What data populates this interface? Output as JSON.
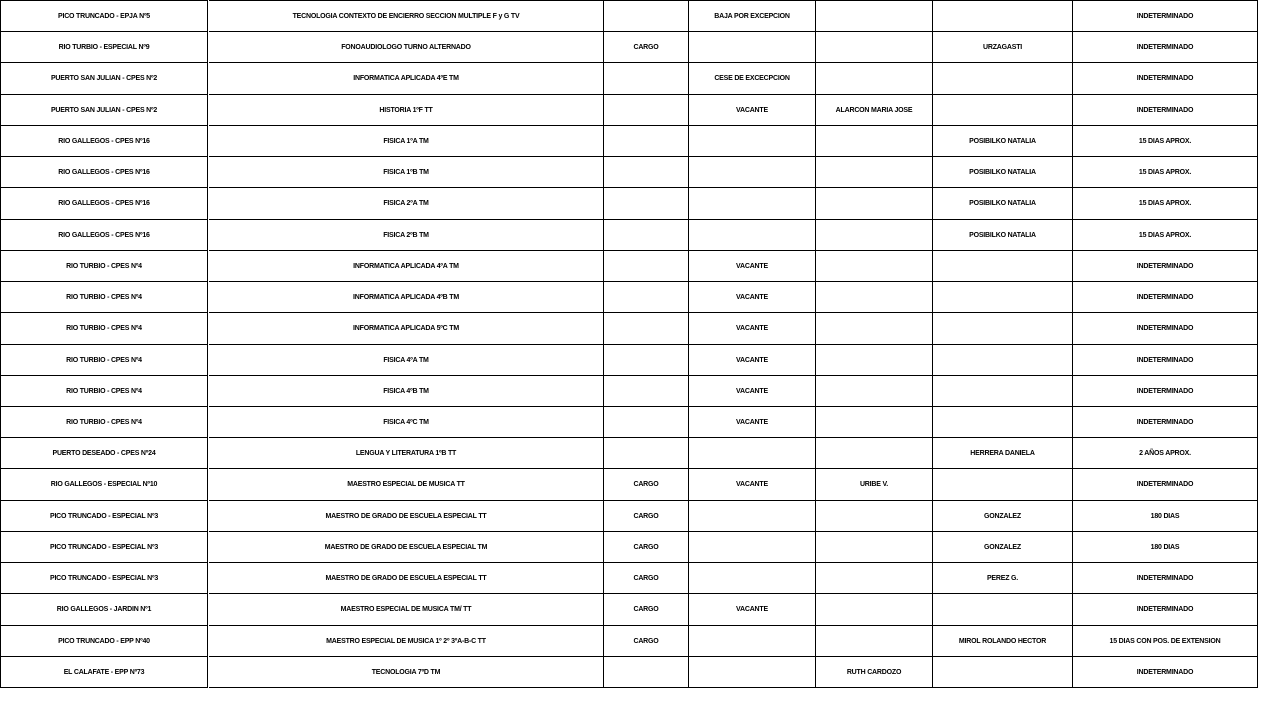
{
  "table": {
    "rows": [
      [
        "PICO TRUNCADO - EPJA Nº5",
        "TECNOLOGIA CONTEXTO DE ENCIERRO SECCION MULTIPLE F y G TV",
        null,
        "BAJA POR EXCEPCION",
        null,
        null,
        "INDETERMINADO"
      ],
      [
        "RIO TURBIO - ESPECIAL Nº9",
        "FONOAUDIOLOGO TURNO ALTERNADO",
        "CARGO",
        null,
        null,
        "URZAGASTI",
        "INDETERMINADO"
      ],
      [
        "PUERTO SAN JULIAN - CPES Nº2",
        "INFORMATICA APLICADA 4ºE TM",
        null,
        "CESE DE EXCECPCION",
        null,
        null,
        "INDETERMINADO"
      ],
      [
        "PUERTO SAN JULIAN - CPES Nº2",
        "HISTORIA 1ºF TT",
        null,
        "VACANTE",
        "ALARCON MARIA JOSE",
        null,
        "INDETERMINADO"
      ],
      [
        "RIO GALLEGOS - CPES Nº16",
        "FISICA 1ºA TM",
        null,
        null,
        null,
        "POSIBILKO NATALIA",
        "15 DIAS APROX."
      ],
      [
        "RIO GALLEGOS - CPES Nº16",
        "FISICA 1ºB TM",
        null,
        null,
        null,
        "POSIBILKO NATALIA",
        "15 DIAS APROX."
      ],
      [
        "RIO GALLEGOS - CPES Nº16",
        "FISICA 2ºA TM",
        null,
        null,
        null,
        "POSIBILKO NATALIA",
        "15 DIAS APROX."
      ],
      [
        "RIO GALLEGOS - CPES Nº16",
        "FISICA 2ºB TM",
        null,
        null,
        null,
        "POSIBILKO NATALIA",
        "15 DIAS APROX."
      ],
      [
        "RIO TURBIO - CPES Nº4",
        "INFORMATICA APLICADA 4ºA TM",
        null,
        "VACANTE",
        null,
        null,
        "INDETERMINADO"
      ],
      [
        "RIO TURBIO - CPES Nº4",
        "INFORMATICA APLICADA 4ºB TM",
        null,
        "VACANTE",
        null,
        null,
        "INDETERMINADO"
      ],
      [
        "RIO TURBIO - CPES Nº4",
        "INFORMATICA APLICADA 5ºC TM",
        null,
        "VACANTE",
        null,
        null,
        "INDETERMINADO"
      ],
      [
        "RIO TURBIO - CPES Nº4",
        "FISICA 4ºA TM",
        null,
        "VACANTE",
        null,
        null,
        "INDETERMINADO"
      ],
      [
        "RIO TURBIO - CPES Nº4",
        "FISICA 4ºB TM",
        null,
        "VACANTE",
        null,
        null,
        "INDETERMINADO"
      ],
      [
        "RIO TURBIO - CPES Nº4",
        "FISICA 4ºC TM",
        null,
        "VACANTE",
        null,
        null,
        "INDETERMINADO"
      ],
      [
        "PUERTO DESEADO - CPES Nº24",
        "LENGUA Y LITERATURA 1ºB TT",
        null,
        null,
        null,
        "HERRERA DANIELA",
        "2 AÑOS APROX."
      ],
      [
        "RIO GALLEGOS - ESPECIAL Nº10",
        "MAESTRO ESPECIAL DE MUSICA TT",
        "CARGO",
        "VACANTE",
        "URIBE V.",
        null,
        "INDETERMINADO"
      ],
      [
        "PICO TRUNCADO - ESPECIAL Nº3",
        "MAESTRO DE GRADO DE ESCUELA ESPECIAL TT",
        "CARGO",
        null,
        null,
        "GONZALEZ",
        "180 DIAS"
      ],
      [
        "PICO TRUNCADO - ESPECIAL Nº3",
        "MAESTRO DE GRADO DE ESCUELA ESPECIAL TM",
        "CARGO",
        null,
        null,
        "GONZALEZ",
        "180 DIAS"
      ],
      [
        "PICO TRUNCADO - ESPECIAL Nº3",
        "MAESTRO DE GRADO DE ESCUELA ESPECIAL TT",
        "CARGO",
        null,
        null,
        "PEREZ G.",
        "INDETERMINADO"
      ],
      [
        "RIO GALLEGOS - JARDIN Nº1",
        "MAESTRO ESPECIAL DE MUSICA TM/ TT",
        "CARGO",
        "VACANTE",
        null,
        null,
        "INDETERMINADO"
      ],
      [
        "PICO TRUNCADO - EPP Nº40",
        "MAESTRO ESPECIAL DE MUSICA 1º 2º 3ºA-B-C TT",
        "CARGO",
        null,
        null,
        "MIROL ROLANDO HECTOR",
        "15 DIAS CON POS. DE EXTENSION"
      ],
      [
        "EL CALAFATE - EPP Nº73",
        "TECNOLOGIA 7ºD TM",
        null,
        null,
        "RUTH CARDOZO",
        null,
        "INDETERMINADO"
      ]
    ]
  }
}
